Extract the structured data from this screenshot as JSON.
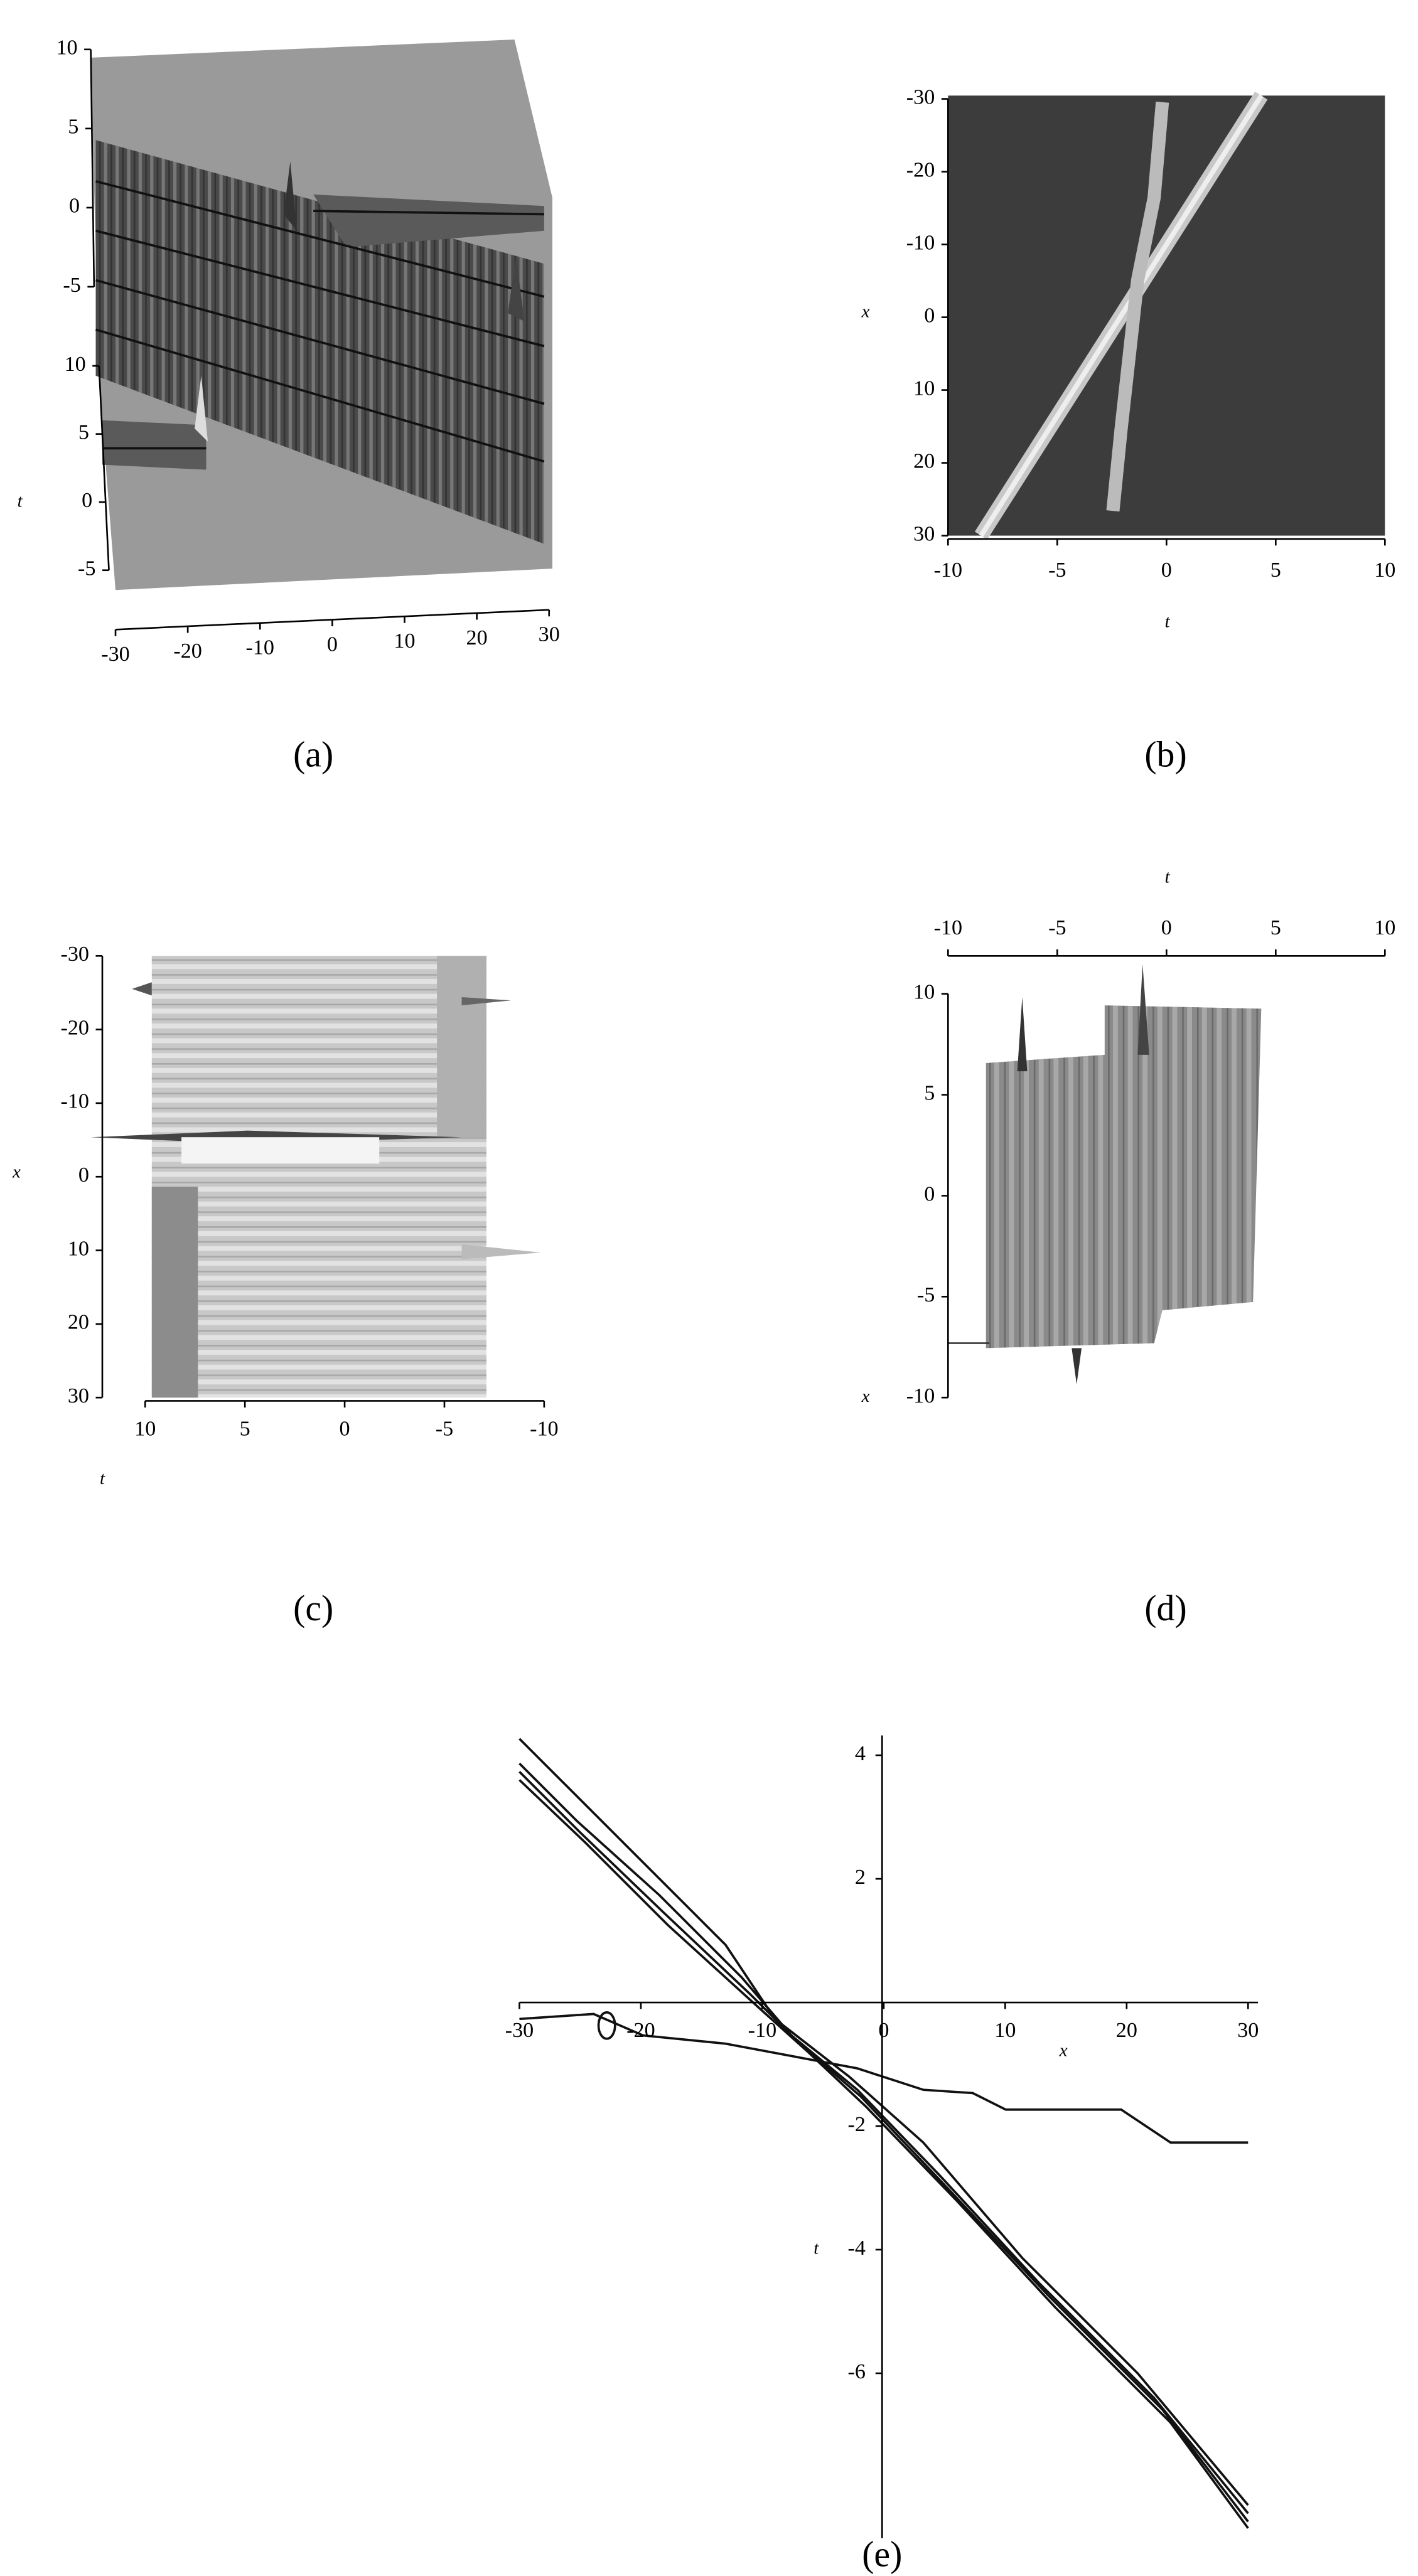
{
  "panels": [
    {
      "caption": "(a)",
      "xticks": [
        -30,
        -20,
        -10,
        0,
        10,
        20,
        30
      ],
      "zticks": [
        10,
        5,
        0,
        -5
      ],
      "yticks": [
        10,
        5,
        0,
        -5
      ],
      "ylabel": "t"
    },
    {
      "caption": "(b)",
      "xticks": [
        -10,
        -5,
        0,
        5,
        10
      ],
      "yticks": [
        -30,
        -20,
        -10,
        0,
        10,
        20,
        30
      ],
      "xlabel": "t",
      "ylabel": "x"
    },
    {
      "caption": "(c)",
      "xticks": [
        10,
        5,
        0,
        -5,
        -10
      ],
      "yticks": [
        -30,
        -20,
        -10,
        0,
        10,
        20,
        30
      ],
      "xlabel": "t",
      "ylabel": "x"
    },
    {
      "caption": "(d)",
      "xticks": [
        -10,
        -5,
        0,
        5,
        10
      ],
      "yticks": [
        10,
        5,
        0,
        -5,
        -10
      ],
      "xlabel": "t",
      "ylabel": "x"
    },
    {
      "caption": "(e)",
      "xticks": [
        -30,
        -20,
        -10,
        0,
        10,
        20,
        30
      ],
      "yticks": [
        4,
        2,
        -2,
        -4,
        -6
      ],
      "xlabel": "x",
      "ylabel": "t"
    }
  ]
}
